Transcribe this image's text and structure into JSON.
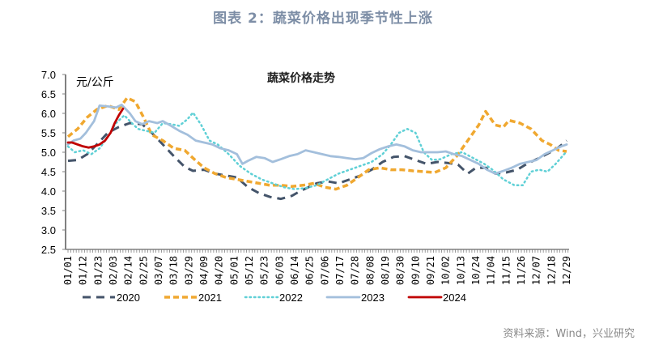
{
  "header": {
    "title": "图表 2：蔬菜价格出现季节性上涨",
    "source": "资料来源：Wind，兴业研究"
  },
  "chart_data": {
    "type": "line",
    "title": "蔬菜价格走势",
    "ylabel": "元/公斤",
    "xlabel": "",
    "ylim": [
      2.5,
      7.0
    ],
    "yticks": [
      "7.0",
      "6.5",
      "6.0",
      "5.5",
      "5.0",
      "4.5",
      "4.0",
      "3.5",
      "3.0",
      "2.5"
    ],
    "x_tick_labels": [
      "01/01",
      "01/12",
      "01/23",
      "02/03",
      "02/14",
      "02/25",
      "03/07",
      "03/18",
      "03/29",
      "04/09",
      "04/20",
      "05/01",
      "05/12",
      "05/23",
      "06/03",
      "06/14",
      "06/25",
      "07/06",
      "07/17",
      "07/28",
      "08/08",
      "08/19",
      "08/30",
      "09/10",
      "09/21",
      "10/02",
      "10/13",
      "10/24",
      "11/04",
      "11/15",
      "11/26",
      "12/07",
      "12/18",
      "12/29"
    ],
    "x_unit": "day-of-year",
    "legend": "bottom",
    "grid": false,
    "series": [
      {
        "name": "2020",
        "color": "#44546a",
        "style": "dashed",
        "points": [
          [
            1,
            4.78
          ],
          [
            8,
            4.8
          ],
          [
            15,
            4.95
          ],
          [
            22,
            5.2
          ],
          [
            30,
            5.5
          ],
          [
            38,
            5.65
          ],
          [
            46,
            5.75
          ],
          [
            55,
            5.72
          ],
          [
            62,
            5.5
          ],
          [
            70,
            5.2
          ],
          [
            78,
            4.9
          ],
          [
            86,
            4.62
          ],
          [
            92,
            4.52
          ],
          [
            100,
            4.55
          ],
          [
            108,
            4.45
          ],
          [
            116,
            4.4
          ],
          [
            124,
            4.35
          ],
          [
            132,
            4.1
          ],
          [
            140,
            3.95
          ],
          [
            148,
            3.85
          ],
          [
            156,
            3.8
          ],
          [
            164,
            3.88
          ],
          [
            170,
            4.0
          ],
          [
            176,
            4.1
          ],
          [
            182,
            4.2
          ],
          [
            190,
            4.25
          ],
          [
            198,
            4.2
          ],
          [
            206,
            4.3
          ],
          [
            214,
            4.4
          ],
          [
            222,
            4.55
          ],
          [
            230,
            4.75
          ],
          [
            238,
            4.88
          ],
          [
            246,
            4.9
          ],
          [
            254,
            4.8
          ],
          [
            262,
            4.7
          ],
          [
            270,
            4.75
          ],
          [
            278,
            4.72
          ],
          [
            285,
            4.68
          ],
          [
            292,
            4.45
          ],
          [
            298,
            4.6
          ],
          [
            305,
            4.6
          ],
          [
            312,
            4.45
          ],
          [
            320,
            4.48
          ],
          [
            328,
            4.55
          ],
          [
            336,
            4.72
          ],
          [
            344,
            4.85
          ],
          [
            352,
            5.0
          ],
          [
            358,
            5.12
          ],
          [
            364,
            5.3
          ]
        ]
      },
      {
        "name": "2021",
        "color": "#f0a830",
        "style": "dashed-short",
        "points": [
          [
            1,
            5.4
          ],
          [
            8,
            5.6
          ],
          [
            15,
            5.9
          ],
          [
            22,
            6.1
          ],
          [
            30,
            6.2
          ],
          [
            38,
            6.1
          ],
          [
            44,
            6.4
          ],
          [
            50,
            6.3
          ],
          [
            56,
            5.9
          ],
          [
            62,
            5.45
          ],
          [
            70,
            5.3
          ],
          [
            78,
            5.1
          ],
          [
            86,
            5.05
          ],
          [
            92,
            4.85
          ],
          [
            100,
            4.6
          ],
          [
            108,
            4.45
          ],
          [
            116,
            4.35
          ],
          [
            124,
            4.3
          ],
          [
            132,
            4.25
          ],
          [
            140,
            4.2
          ],
          [
            148,
            4.15
          ],
          [
            156,
            4.15
          ],
          [
            164,
            4.12
          ],
          [
            172,
            4.15
          ],
          [
            180,
            4.2
          ],
          [
            188,
            4.1
          ],
          [
            196,
            4.05
          ],
          [
            204,
            4.15
          ],
          [
            212,
            4.35
          ],
          [
            220,
            4.55
          ],
          [
            228,
            4.6
          ],
          [
            236,
            4.55
          ],
          [
            244,
            4.55
          ],
          [
            252,
            4.52
          ],
          [
            260,
            4.5
          ],
          [
            268,
            4.48
          ],
          [
            276,
            4.6
          ],
          [
            284,
            4.9
          ],
          [
            292,
            5.3
          ],
          [
            300,
            5.7
          ],
          [
            305,
            6.05
          ],
          [
            312,
            5.7
          ],
          [
            318,
            5.65
          ],
          [
            322,
            5.82
          ],
          [
            330,
            5.75
          ],
          [
            338,
            5.6
          ],
          [
            346,
            5.3
          ],
          [
            352,
            5.2
          ],
          [
            358,
            5.05
          ],
          [
            364,
            5.02
          ]
        ]
      },
      {
        "name": "2022",
        "color": "#5fd0d6",
        "style": "dotted",
        "points": [
          [
            1,
            5.15
          ],
          [
            6,
            5.0
          ],
          [
            12,
            5.05
          ],
          [
            18,
            4.95
          ],
          [
            24,
            5.1
          ],
          [
            30,
            5.4
          ],
          [
            36,
            5.75
          ],
          [
            42,
            5.95
          ],
          [
            46,
            5.8
          ],
          [
            52,
            5.6
          ],
          [
            58,
            5.55
          ],
          [
            64,
            5.5
          ],
          [
            70,
            5.75
          ],
          [
            76,
            5.72
          ],
          [
            82,
            5.68
          ],
          [
            88,
            5.85
          ],
          [
            92,
            6.02
          ],
          [
            98,
            5.7
          ],
          [
            104,
            5.3
          ],
          [
            110,
            5.2
          ],
          [
            118,
            4.95
          ],
          [
            126,
            4.65
          ],
          [
            134,
            4.45
          ],
          [
            142,
            4.3
          ],
          [
            150,
            4.2
          ],
          [
            158,
            4.1
          ],
          [
            166,
            4.05
          ],
          [
            174,
            4.08
          ],
          [
            182,
            4.15
          ],
          [
            190,
            4.3
          ],
          [
            198,
            4.45
          ],
          [
            206,
            4.55
          ],
          [
            214,
            4.65
          ],
          [
            222,
            4.75
          ],
          [
            230,
            4.95
          ],
          [
            236,
            5.2
          ],
          [
            242,
            5.5
          ],
          [
            248,
            5.6
          ],
          [
            254,
            5.5
          ],
          [
            260,
            5.0
          ],
          [
            266,
            4.8
          ],
          [
            272,
            4.82
          ],
          [
            280,
            4.95
          ],
          [
            288,
            5.0
          ],
          [
            296,
            4.85
          ],
          [
            304,
            4.7
          ],
          [
            310,
            4.55
          ],
          [
            318,
            4.3
          ],
          [
            326,
            4.15
          ],
          [
            332,
            4.15
          ],
          [
            338,
            4.5
          ],
          [
            344,
            4.55
          ],
          [
            350,
            4.5
          ],
          [
            356,
            4.7
          ],
          [
            364,
            5.02
          ]
        ]
      },
      {
        "name": "2023",
        "color": "#a3bfdc",
        "style": "solid",
        "points": [
          [
            1,
            5.2
          ],
          [
            5,
            5.3
          ],
          [
            10,
            5.35
          ],
          [
            14,
            5.5
          ],
          [
            20,
            5.8
          ],
          [
            24,
            6.2
          ],
          [
            30,
            6.18
          ],
          [
            36,
            6.15
          ],
          [
            40,
            6.22
          ],
          [
            46,
            6.0
          ],
          [
            50,
            5.8
          ],
          [
            55,
            5.72
          ],
          [
            60,
            5.8
          ],
          [
            66,
            5.75
          ],
          [
            70,
            5.8
          ],
          [
            76,
            5.68
          ],
          [
            82,
            5.55
          ],
          [
            88,
            5.45
          ],
          [
            94,
            5.3
          ],
          [
            100,
            5.25
          ],
          [
            106,
            5.2
          ],
          [
            112,
            5.1
          ],
          [
            118,
            5.05
          ],
          [
            124,
            4.95
          ],
          [
            128,
            4.7
          ],
          [
            132,
            4.78
          ],
          [
            138,
            4.88
          ],
          [
            144,
            4.85
          ],
          [
            150,
            4.75
          ],
          [
            156,
            4.82
          ],
          [
            162,
            4.9
          ],
          [
            168,
            4.95
          ],
          [
            174,
            5.05
          ],
          [
            180,
            5.0
          ],
          [
            186,
            4.95
          ],
          [
            192,
            4.9
          ],
          [
            198,
            4.88
          ],
          [
            204,
            4.85
          ],
          [
            210,
            4.82
          ],
          [
            216,
            4.85
          ],
          [
            222,
            4.98
          ],
          [
            228,
            5.08
          ],
          [
            234,
            5.15
          ],
          [
            240,
            5.2
          ],
          [
            246,
            5.15
          ],
          [
            252,
            5.05
          ],
          [
            258,
            5.0
          ],
          [
            264,
            5.0
          ],
          [
            270,
            5.0
          ],
          [
            276,
            5.02
          ],
          [
            282,
            4.95
          ],
          [
            288,
            4.9
          ],
          [
            294,
            4.8
          ],
          [
            300,
            4.7
          ],
          [
            306,
            4.55
          ],
          [
            312,
            4.45
          ],
          [
            318,
            4.52
          ],
          [
            324,
            4.6
          ],
          [
            330,
            4.7
          ],
          [
            336,
            4.75
          ],
          [
            342,
            4.8
          ],
          [
            348,
            4.95
          ],
          [
            354,
            5.05
          ],
          [
            360,
            5.15
          ],
          [
            364,
            5.2
          ]
        ]
      },
      {
        "name": "2024",
        "color": "#c00000",
        "style": "solid",
        "points": [
          [
            1,
            5.25
          ],
          [
            4,
            5.25
          ],
          [
            8,
            5.2
          ],
          [
            12,
            5.15
          ],
          [
            16,
            5.12
          ],
          [
            20,
            5.15
          ],
          [
            24,
            5.2
          ],
          [
            28,
            5.3
          ],
          [
            32,
            5.5
          ],
          [
            35,
            5.75
          ],
          [
            38,
            5.95
          ],
          [
            41,
            6.12
          ]
        ]
      }
    ]
  }
}
